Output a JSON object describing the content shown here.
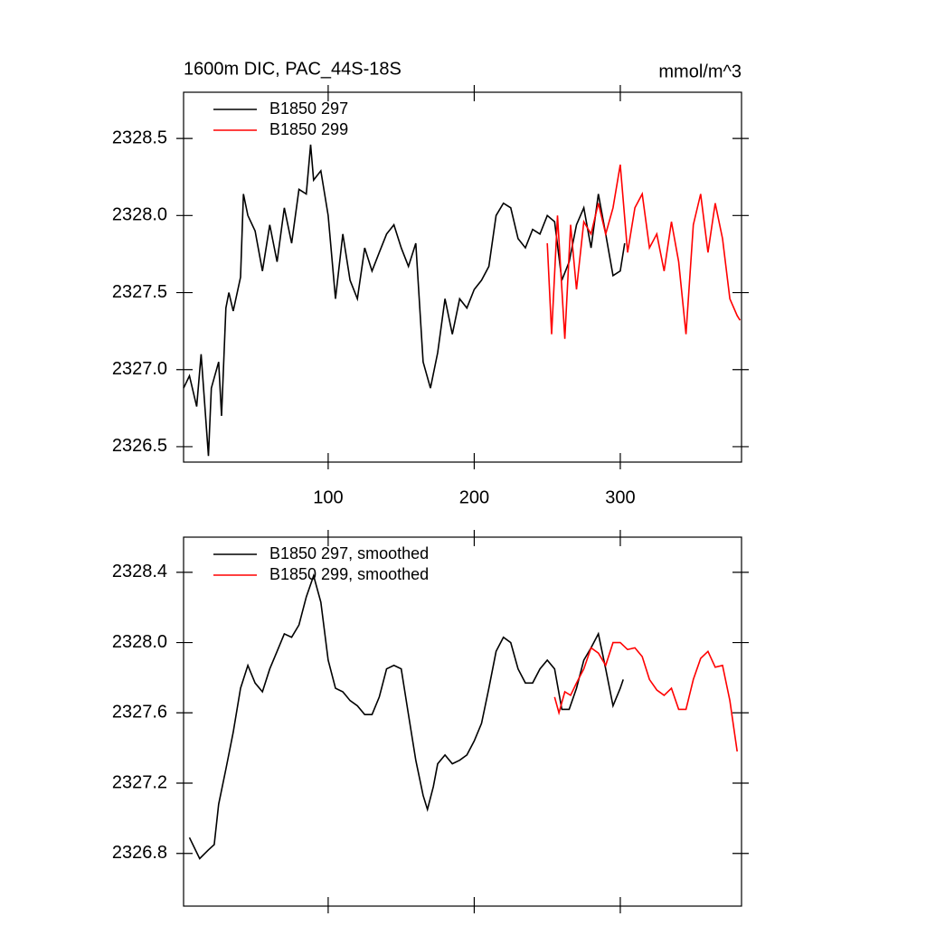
{
  "chart_data": [
    {
      "type": "line",
      "title": "1600m DIC, PAC_44S-18S",
      "subtitle": "mmol/m^3",
      "xlim": [
        1,
        383
      ],
      "xticks": [
        100,
        200,
        300
      ],
      "ylim": [
        2326.4,
        2328.8
      ],
      "yticks": [
        {
          "value": 2326.5,
          "label": "2326.5"
        },
        {
          "value": 2327,
          "label": "2327.0"
        },
        {
          "value": 2327.5,
          "label": "2327.5"
        },
        {
          "value": 2328,
          "label": "2328.0"
        },
        {
          "value": 2328.5,
          "label": "2328.5"
        }
      ],
      "legend": "top-left",
      "series": [
        {
          "name": "B1850 297",
          "color": "#000000",
          "x": [
            1,
            5,
            10,
            13,
            18,
            20,
            25,
            27,
            30,
            32,
            35,
            40,
            42,
            45,
            50,
            55,
            60,
            65,
            70,
            75,
            80,
            85,
            88,
            90,
            95,
            100,
            105,
            110,
            115,
            120,
            125,
            130,
            135,
            140,
            145,
            150,
            155,
            160,
            165,
            170,
            175,
            180,
            185,
            190,
            195,
            200,
            205,
            210,
            215,
            220,
            225,
            230,
            235,
            240,
            245,
            250,
            255,
            260,
            265,
            270,
            275,
            280,
            285,
            290,
            295,
            300,
            303
          ],
          "values": [
            2326.88,
            2326.96,
            2326.76,
            2327.1,
            2326.44,
            2326.88,
            2327.05,
            2326.7,
            2327.4,
            2327.5,
            2327.38,
            2327.6,
            2328.14,
            2328.0,
            2327.9,
            2327.64,
            2327.94,
            2327.7,
            2328.05,
            2327.82,
            2328.17,
            2328.14,
            2328.46,
            2328.23,
            2328.29,
            2328.0,
            2327.46,
            2327.88,
            2327.58,
            2327.46,
            2327.79,
            2327.64,
            2327.76,
            2327.88,
            2327.94,
            2327.79,
            2327.67,
            2327.82,
            2327.05,
            2326.88,
            2327.11,
            2327.46,
            2327.23,
            2327.46,
            2327.4,
            2327.52,
            2327.58,
            2327.67,
            2328.0,
            2328.08,
            2328.05,
            2327.85,
            2327.79,
            2327.91,
            2327.88,
            2328.0,
            2327.96,
            2327.58,
            2327.7,
            2327.94,
            2328.05,
            2327.79,
            2328.14,
            2327.88,
            2327.61,
            2327.64,
            2327.82
          ]
        },
        {
          "name": "B1850 299",
          "color": "#ff0000",
          "x": [
            250,
            253,
            257,
            262,
            266,
            270,
            275,
            280,
            285,
            290,
            295,
            300,
            305,
            310,
            315,
            320,
            325,
            330,
            335,
            340,
            345,
            350,
            355,
            360,
            365,
            370,
            375,
            380,
            382
          ],
          "values": [
            2327.82,
            2327.23,
            2328.0,
            2327.2,
            2327.94,
            2327.52,
            2327.96,
            2327.88,
            2328.08,
            2327.88,
            2328.05,
            2328.33,
            2327.76,
            2328.05,
            2328.14,
            2327.79,
            2327.88,
            2327.64,
            2327.96,
            2327.7,
            2327.23,
            2327.94,
            2328.14,
            2327.76,
            2328.08,
            2327.85,
            2327.46,
            2327.35,
            2327.32
          ]
        }
      ]
    },
    {
      "type": "line",
      "xlim": [
        1,
        383
      ],
      "xticks": [
        100,
        200,
        300
      ],
      "ylim": [
        2326.5,
        2328.6
      ],
      "yticks": [
        2326.8,
        2327.2,
        2327.6,
        {
          "value": 2328,
          "label": "2328.0"
        },
        2328.4
      ],
      "legend": "top-left",
      "series": [
        {
          "name": "B1850 297, smoothed",
          "color": "#000000",
          "x": [
            5,
            12,
            18,
            22,
            25,
            30,
            35,
            40,
            45,
            50,
            55,
            60,
            65,
            70,
            75,
            80,
            85,
            90,
            95,
            100,
            105,
            110,
            115,
            120,
            125,
            130,
            135,
            140,
            145,
            150,
            155,
            160,
            165,
            168,
            172,
            175,
            180,
            185,
            190,
            195,
            200,
            205,
            210,
            215,
            220,
            225,
            230,
            235,
            240,
            245,
            250,
            255,
            260,
            265,
            270,
            275,
            280,
            285,
            290,
            295,
            300,
            302
          ],
          "values": [
            2326.89,
            2326.77,
            2326.82,
            2326.85,
            2327.08,
            2327.28,
            2327.49,
            2327.74,
            2327.87,
            2327.77,
            2327.72,
            2327.85,
            2327.95,
            2328.05,
            2328.03,
            2328.1,
            2328.26,
            2328.38,
            2328.23,
            2327.9,
            2327.74,
            2327.72,
            2327.67,
            2327.64,
            2327.59,
            2327.59,
            2327.69,
            2327.85,
            2327.87,
            2327.85,
            2327.59,
            2327.33,
            2327.13,
            2327.05,
            2327.18,
            2327.31,
            2327.36,
            2327.31,
            2327.33,
            2327.36,
            2327.44,
            2327.54,
            2327.74,
            2327.95,
            2328.03,
            2328.0,
            2327.85,
            2327.77,
            2327.77,
            2327.85,
            2327.9,
            2327.85,
            2327.62,
            2327.62,
            2327.74,
            2327.9,
            2327.97,
            2328.05,
            2327.85,
            2327.64,
            2327.74,
            2327.79
          ]
        },
        {
          "name": "B1850 299, smoothed",
          "color": "#ff0000",
          "x": [
            255,
            258,
            262,
            266,
            270,
            275,
            280,
            285,
            290,
            295,
            300,
            305,
            310,
            315,
            320,
            325,
            330,
            335,
            340,
            345,
            350,
            355,
            360,
            365,
            370,
            375,
            380
          ],
          "values": [
            2327.69,
            2327.6,
            2327.72,
            2327.7,
            2327.77,
            2327.85,
            2327.97,
            2327.94,
            2327.87,
            2328.0,
            2328.0,
            2327.96,
            2327.97,
            2327.92,
            2327.79,
            2327.73,
            2327.7,
            2327.74,
            2327.62,
            2327.62,
            2327.79,
            2327.91,
            2327.95,
            2327.86,
            2327.87,
            2327.67,
            2327.38
          ]
        }
      ]
    }
  ]
}
